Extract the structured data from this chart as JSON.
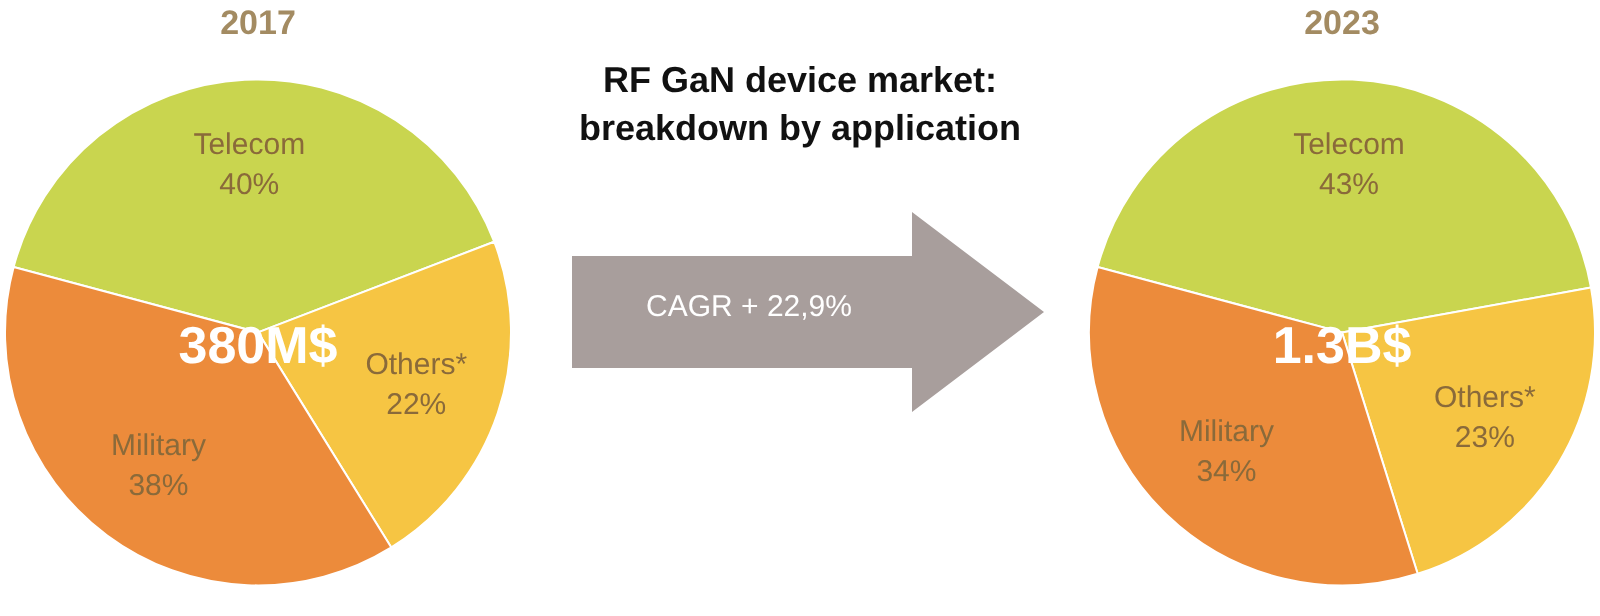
{
  "chart_data": [
    {
      "type": "pie",
      "title": "2017",
      "categories": [
        "Telecom",
        "Others*",
        "Military"
      ],
      "values": [
        40,
        22,
        38
      ],
      "colors": [
        "#c9d54f",
        "#f6c543",
        "#ec8b3b"
      ],
      "value_labels": [
        "40%",
        "22%",
        "38%"
      ],
      "annotations": [
        "380M$"
      ],
      "legend": false
    },
    {
      "type": "other",
      "title": "RF GaN device market: breakdown by application",
      "annotations": [
        "CAGR + 22,9%"
      ]
    },
    {
      "type": "pie",
      "title": "2023",
      "categories": [
        "Telecom",
        "Others*",
        "Military"
      ],
      "values": [
        43,
        23,
        34
      ],
      "colors": [
        "#c9d54f",
        "#f6c543",
        "#ec8b3b"
      ],
      "value_labels": [
        "43%",
        "23%",
        "34%"
      ],
      "annotations": [
        "1.3B$"
      ],
      "legend": false
    }
  ]
}
